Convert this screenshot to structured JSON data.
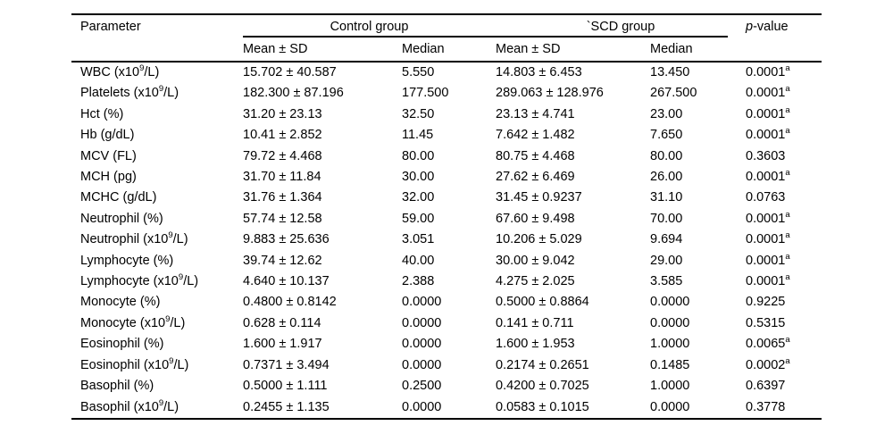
{
  "table": {
    "headers": {
      "parameter": "Parameter",
      "control_group": "Control group",
      "scd_group": "`SCD group",
      "p_value": {
        "italic": "p",
        "rest": "-value"
      },
      "mean_sd": "Mean ± SD",
      "median": "Median"
    },
    "rows": [
      {
        "param_pre": "WBC (x10",
        "param_sup": "9",
        "param_post": "/L)",
        "control_mean_sd": "15.702 ± 40.587",
        "control_median": "5.550",
        "scd_mean_sd": "14.803 ± 6.453",
        "scd_median": "13.450",
        "p": "0.0001",
        "p_sup": "a"
      },
      {
        "param_pre": "Platelets (x10",
        "param_sup": "9",
        "param_post": "/L)",
        "control_mean_sd": "182.300 ± 87.196",
        "control_median": "177.500",
        "scd_mean_sd": "289.063 ± 128.976",
        "scd_median": "267.500",
        "p": "0.0001",
        "p_sup": "a"
      },
      {
        "param_pre": "Hct (%)",
        "param_sup": "",
        "param_post": "",
        "control_mean_sd": "31.20 ± 23.13",
        "control_median": "32.50",
        "scd_mean_sd": "23.13 ± 4.741",
        "scd_median": "23.00",
        "p": "0.0001",
        "p_sup": "a"
      },
      {
        "param_pre": "Hb (g/dL)",
        "param_sup": "",
        "param_post": "",
        "control_mean_sd": "10.41 ± 2.852",
        "control_median": "11.45",
        "scd_mean_sd": "7.642 ± 1.482",
        "scd_median": "7.650",
        "p": "0.0001",
        "p_sup": "a"
      },
      {
        "param_pre": "MCV (FL)",
        "param_sup": "",
        "param_post": "",
        "control_mean_sd": "79.72 ± 4.468",
        "control_median": "80.00",
        "scd_mean_sd": "80.75 ± 4.468",
        "scd_median": "80.00",
        "p": "0.3603",
        "p_sup": ""
      },
      {
        "param_pre": "MCH (pg)",
        "param_sup": "",
        "param_post": "",
        "control_mean_sd": "31.70 ± 11.84",
        "control_median": "30.00",
        "scd_mean_sd": "27.62 ± 6.469",
        "scd_median": "26.00",
        "p": "0.0001",
        "p_sup": "a"
      },
      {
        "param_pre": "MCHC (g/dL)",
        "param_sup": "",
        "param_post": "",
        "control_mean_sd": "31.76 ± 1.364",
        "control_median": "32.00",
        "scd_mean_sd": "31.45 ± 0.9237",
        "scd_median": "31.10",
        "p": "0.0763",
        "p_sup": ""
      },
      {
        "param_pre": "Neutrophil (%)",
        "param_sup": "",
        "param_post": "",
        "control_mean_sd": "57.74 ± 12.58",
        "control_median": "59.00",
        "scd_mean_sd": "67.60 ± 9.498",
        "scd_median": "70.00",
        "p": "0.0001",
        "p_sup": "a"
      },
      {
        "param_pre": "Neutrophil (x10",
        "param_sup": "9",
        "param_post": "/L)",
        "control_mean_sd": "9.883 ± 25.636",
        "control_median": "3.051",
        "scd_mean_sd": "10.206 ± 5.029",
        "scd_median": "9.694",
        "p": "0.0001",
        "p_sup": "a"
      },
      {
        "param_pre": "Lymphocyte (%)",
        "param_sup": "",
        "param_post": "",
        "control_mean_sd": "39.74 ± 12.62",
        "control_median": "40.00",
        "scd_mean_sd": "30.00 ± 9.042",
        "scd_median": "29.00",
        "p": "0.0001",
        "p_sup": "a"
      },
      {
        "param_pre": "Lymphocyte (x10",
        "param_sup": "9",
        "param_post": "/L)",
        "control_mean_sd": "4.640 ± 10.137",
        "control_median": "2.388",
        "scd_mean_sd": "4.275 ± 2.025",
        "scd_median": "3.585",
        "p": "0.0001",
        "p_sup": "a"
      },
      {
        "param_pre": "Monocyte (%)",
        "param_sup": "",
        "param_post": "",
        "control_mean_sd": "0.4800 ± 0.8142",
        "control_median": "0.0000",
        "scd_mean_sd": "0.5000 ± 0.8864",
        "scd_median": "0.0000",
        "p": "0.9225",
        "p_sup": ""
      },
      {
        "param_pre": "Monocyte (x10",
        "param_sup": "9",
        "param_post": "/L)",
        "control_mean_sd": "0.628 ± 0.114",
        "control_median": "0.0000",
        "scd_mean_sd": "0.141 ± 0.711",
        "scd_median": "0.0000",
        "p": "0.5315",
        "p_sup": ""
      },
      {
        "param_pre": "Eosinophil (%)",
        "param_sup": "",
        "param_post": "",
        "control_mean_sd": "1.600 ± 1.917",
        "control_median": "0.0000",
        "scd_mean_sd": "1.600 ± 1.953",
        "scd_median": "1.0000",
        "p": "0.0065",
        "p_sup": "a"
      },
      {
        "param_pre": "Eosinophil (x10",
        "param_sup": "9",
        "param_post": "/L)",
        "control_mean_sd": "0.7371 ± 3.494",
        "control_median": "0.0000",
        "scd_mean_sd": "0.2174 ± 0.2651",
        "scd_median": "0.1485",
        "p": "0.0002",
        "p_sup": "a"
      },
      {
        "param_pre": "Basophil (%)",
        "param_sup": "",
        "param_post": "",
        "control_mean_sd": "0.5000 ± 1.111",
        "control_median": "0.2500",
        "scd_mean_sd": "0.4200 ± 0.7025",
        "scd_median": "1.0000",
        "p": "0.6397",
        "p_sup": ""
      },
      {
        "param_pre": "Basophil (x10",
        "param_sup": "9",
        "param_post": "/L)",
        "control_mean_sd": "0.2455 ± 1.135",
        "control_median": "0.0000",
        "scd_mean_sd": "0.0583 ± 0.1015",
        "scd_median": "0.0000",
        "p": "0.3778",
        "p_sup": ""
      }
    ]
  }
}
